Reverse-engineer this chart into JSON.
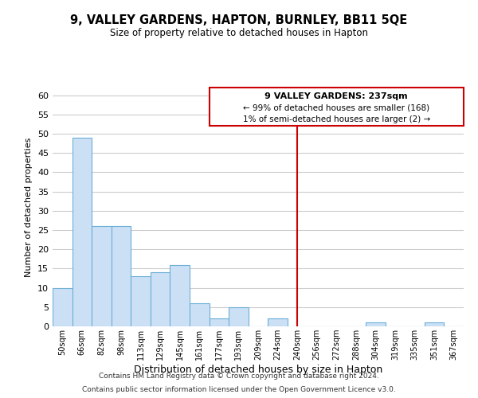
{
  "title": "9, VALLEY GARDENS, HAPTON, BURNLEY, BB11 5QE",
  "subtitle": "Size of property relative to detached houses in Hapton",
  "xlabel": "Distribution of detached houses by size in Hapton",
  "ylabel": "Number of detached properties",
  "bin_labels": [
    "50sqm",
    "66sqm",
    "82sqm",
    "98sqm",
    "113sqm",
    "129sqm",
    "145sqm",
    "161sqm",
    "177sqm",
    "193sqm",
    "209sqm",
    "224sqm",
    "240sqm",
    "256sqm",
    "272sqm",
    "288sqm",
    "304sqm",
    "319sqm",
    "335sqm",
    "351sqm",
    "367sqm"
  ],
  "bar_heights": [
    10,
    49,
    26,
    26,
    13,
    14,
    16,
    6,
    2,
    5,
    0,
    2,
    0,
    0,
    0,
    0,
    1,
    0,
    0,
    1,
    0
  ],
  "bar_color": "#cce0f5",
  "bar_edge_color": "#6baed6",
  "ylim": [
    0,
    62
  ],
  "yticks": [
    0,
    5,
    10,
    15,
    20,
    25,
    30,
    35,
    40,
    45,
    50,
    55,
    60
  ],
  "reference_line_x_label": "240sqm",
  "reference_line_color": "#cc0000",
  "annotation_title": "9 VALLEY GARDENS: 237sqm",
  "annotation_line1": "← 99% of detached houses are smaller (168)",
  "annotation_line2": "1% of semi-detached houses are larger (2) →",
  "footer_line1": "Contains HM Land Registry data © Crown copyright and database right 2024.",
  "footer_line2": "Contains public sector information licensed under the Open Government Licence v3.0.",
  "background_color": "#ffffff",
  "grid_color": "#cccccc"
}
